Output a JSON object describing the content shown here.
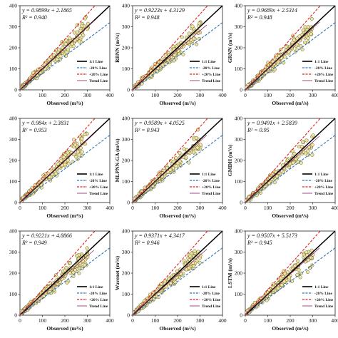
{
  "axis": {
    "xlabel": "Observed (m³/s)",
    "ticks": [
      0,
      100,
      200,
      300,
      400
    ],
    "xlim": [
      0,
      400
    ],
    "ylim": [
      0,
      400
    ]
  },
  "legend": {
    "placement": "bottom-right",
    "entries": [
      {
        "label": "1:1 Line",
        "color": "#000000",
        "style": "solid-thick"
      },
      {
        "label": "-20% Line",
        "color": "#2e75b6",
        "style": "dashed"
      },
      {
        "label": "+20% Line",
        "color": "#e02020",
        "style": "dashed"
      },
      {
        "label": "Trend Line",
        "color": "#8a2060",
        "style": "solid-thin"
      }
    ]
  },
  "colors": {
    "point_fill": "#ece6a6",
    "point_stroke": "#6b5a22"
  },
  "chart_data": [
    {
      "type": "scatter",
      "ylabel": "",
      "slope": 0.9899,
      "intercept": 2.1865,
      "eq": "y = 0.9899x + 2.1865",
      "r2": "R² = 0.940"
    },
    {
      "type": "scatter",
      "ylabel": "RBNN (m³/s)",
      "slope": 0.9223,
      "intercept": 4.3129,
      "eq": "y = 0.9223x + 4.3129",
      "r2": "R² = 0.948"
    },
    {
      "type": "scatter",
      "ylabel": "GRNN (m³/s)",
      "slope": 0.9689,
      "intercept": 2.5314,
      "eq": "y = 0.9689x + 2.5314",
      "r2": "R² = 0.948"
    },
    {
      "type": "scatter",
      "ylabel": "",
      "slope": 0.984,
      "intercept": 2.3831,
      "eq": "y = 0.984x + 2.3831",
      "r2": "R² = 0.953"
    },
    {
      "type": "scatter",
      "ylabel": "MLPNN-GA (m³/s)",
      "slope": 0.9589,
      "intercept": 4.0525,
      "eq": "y = 0.9589x + 4.0525",
      "r2": "R² = 0.943"
    },
    {
      "type": "scatter",
      "ylabel": "GMDH (m³/s)",
      "slope": 0.9491,
      "intercept": 2.5839,
      "eq": "y = 0.9491x + 2.5839",
      "r2": "R² = 0.95"
    },
    {
      "type": "scatter",
      "ylabel": "",
      "slope": 0.9221,
      "intercept": 4.8866,
      "eq": "y = 0.9221x + 4.8866",
      "r2": "R² = 0.949"
    },
    {
      "type": "scatter",
      "ylabel": "Wavenet (m³/s)",
      "slope": 0.9371,
      "intercept": 4.3417,
      "eq": "y = 0.9371x + 4.3417",
      "r2": "R² = 0.946"
    },
    {
      "type": "scatter",
      "ylabel": "LSTM (m³/s)",
      "slope": 0.9507,
      "intercept": 5.5173,
      "eq": "y = 0.9507x + 5.5173",
      "r2": "R² = 0.945"
    }
  ]
}
